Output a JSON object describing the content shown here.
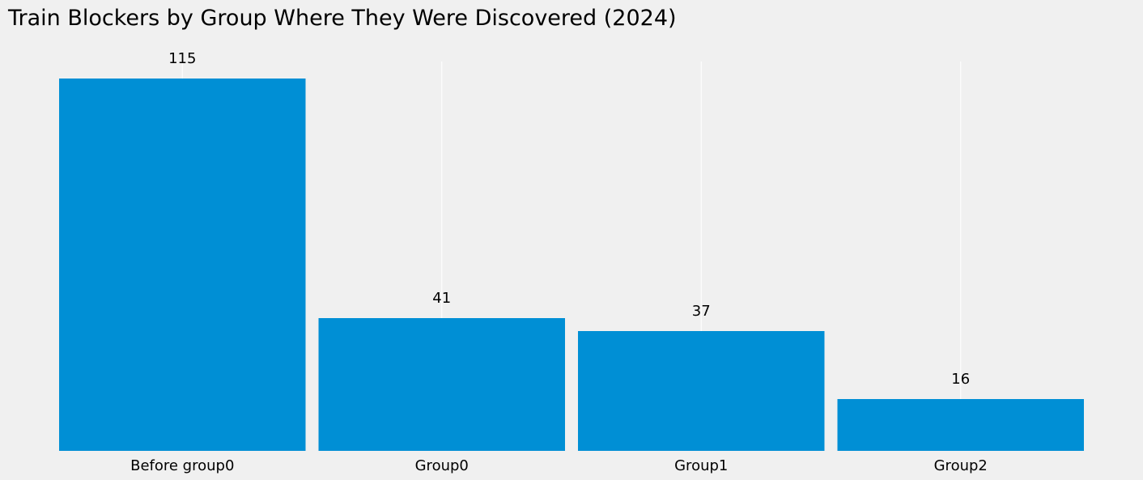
{
  "chart_data": {
    "type": "bar",
    "title": "Train Blockers by Group Where They Were Discovered (2024)",
    "categories": [
      "Before group0",
      "Group0",
      "Group1",
      "Group2"
    ],
    "values": [
      115,
      41,
      37,
      16
    ],
    "xlabel": "",
    "ylabel": "",
    "ylim": [
      0,
      120
    ],
    "grid": "vertical",
    "legend": "none",
    "data_labels": true
  },
  "colors": {
    "bar": "#008fd5",
    "background": "#f0f0f0",
    "grid": "#ffffff",
    "text": "#000000"
  }
}
